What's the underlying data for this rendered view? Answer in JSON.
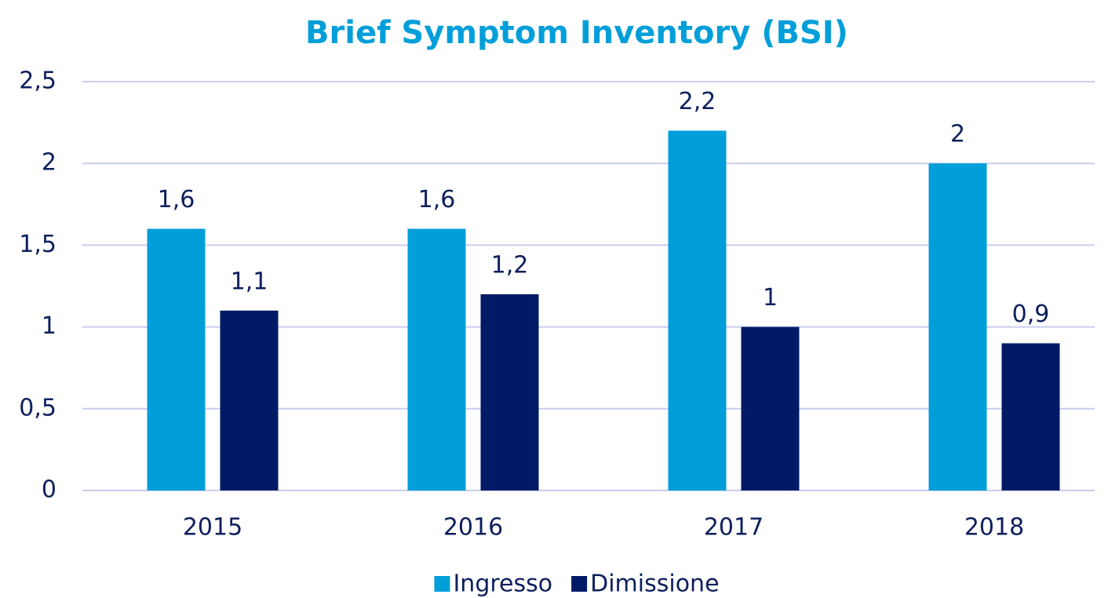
{
  "chart_data": {
    "type": "bar",
    "title": "Brief Symptom Inventory (BSI)",
    "categories": [
      "2015",
      "2016",
      "2017",
      "2018"
    ],
    "series": [
      {
        "name": "Ingresso",
        "color": "#009fd9",
        "values": [
          1.6,
          1.6,
          2.2,
          2
        ],
        "value_labels": [
          "1,6",
          "1,6",
          "2,2",
          "2"
        ]
      },
      {
        "name": "Dimissione",
        "color": "#001a66",
        "values": [
          1.1,
          1.2,
          1,
          0.9
        ],
        "value_labels": [
          "1,1",
          "1,2",
          "1",
          "0,9"
        ]
      }
    ],
    "ylim": [
      0,
      2.5
    ],
    "yticks": [
      0,
      {
        "value": 0.5,
        "label": "0,5"
      },
      1,
      {
        "value": 1.5,
        "label": "1,5"
      },
      2,
      {
        "value": 2.5,
        "label": "2,5"
      }
    ],
    "grid": true,
    "legend": "bottom"
  }
}
